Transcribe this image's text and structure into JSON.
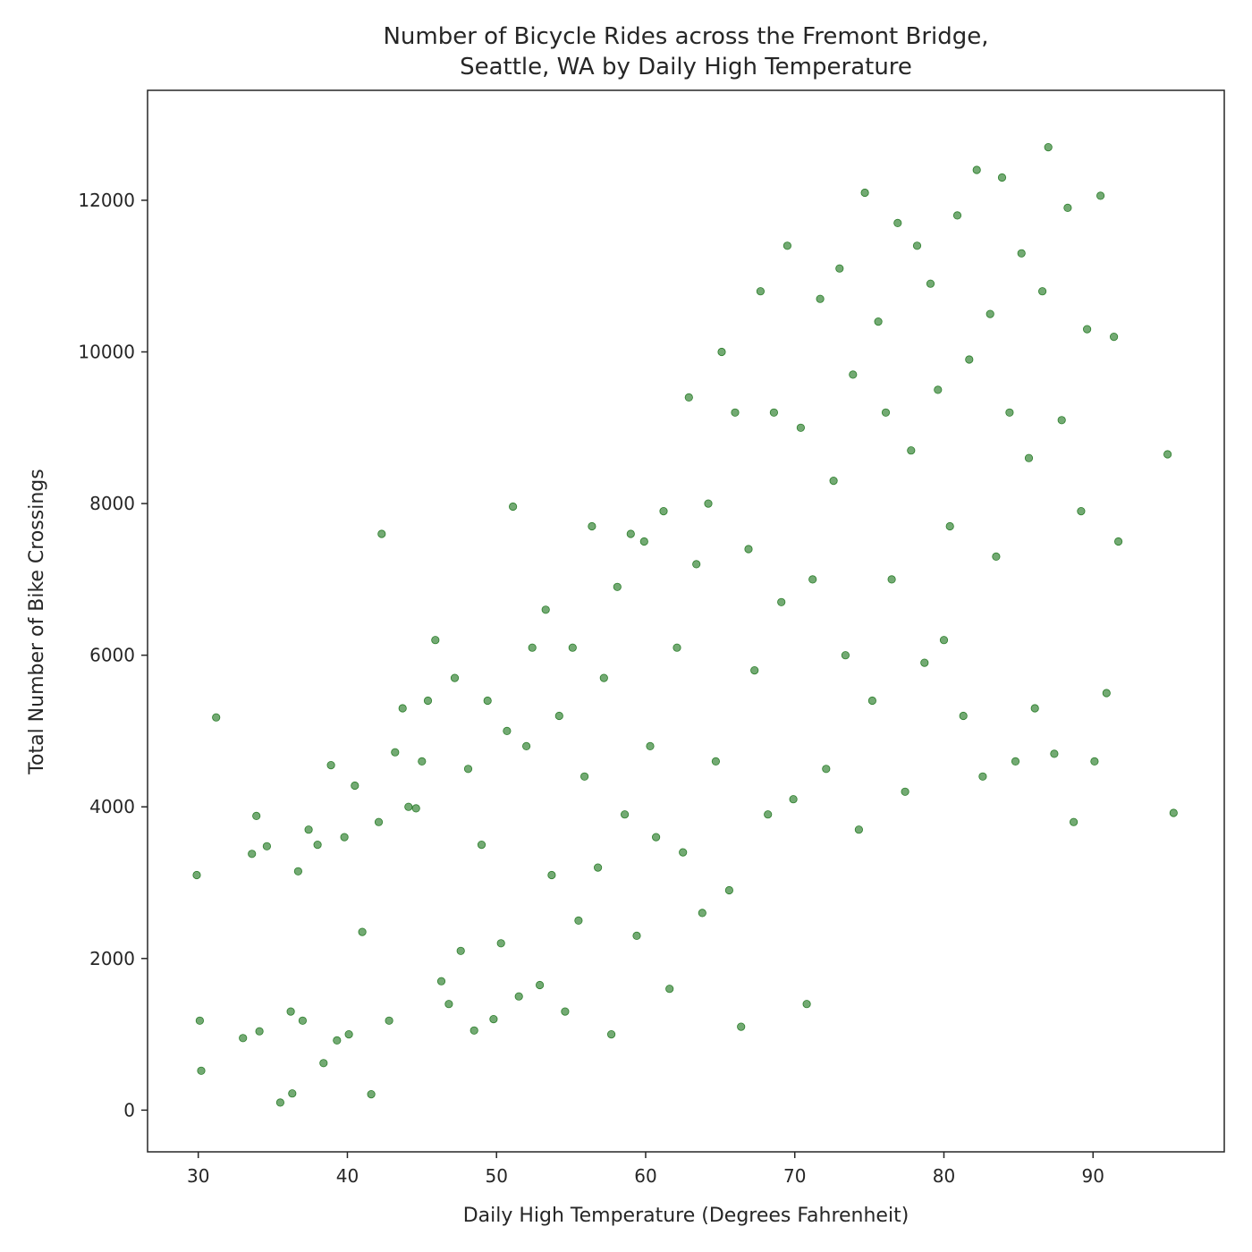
{
  "chart_data": {
    "type": "scatter",
    "title_line1": "Number of Bicycle Rides across the Fremont Bridge,",
    "title_line2": "Seattle, WA by Daily High Temperature",
    "xlabel": "Daily High Temperature (Degrees Fahrenheit)",
    "ylabel": "Total Number of Bike Crossings",
    "xlim": [
      26.6,
      98.8
    ],
    "ylim": [
      -550,
      13450
    ],
    "x_ticks": [
      30,
      40,
      50,
      60,
      70,
      80,
      90
    ],
    "y_ticks": [
      0,
      2000,
      4000,
      6000,
      8000,
      10000,
      12000
    ],
    "grid": false,
    "legend": "none",
    "marker_color": "#006400",
    "marker_alpha": 0.55,
    "series": [
      {
        "x": [
          29.9,
          30.1,
          30.2,
          31.2,
          33.0,
          33.6,
          33.9,
          34.1,
          34.6,
          35.5,
          36.2,
          36.3,
          36.7,
          37.0,
          37.4,
          38.0,
          38.4,
          38.9,
          39.3,
          39.8,
          40.1,
          40.5,
          41.0,
          41.6,
          42.1,
          42.3,
          42.8,
          43.2,
          43.7,
          44.1,
          44.6,
          45.0,
          45.4,
          45.9,
          46.3,
          46.8,
          47.2,
          47.6,
          48.1,
          48.5,
          49.0,
          49.4,
          49.8,
          50.3,
          50.7,
          51.1,
          51.5,
          52.0,
          52.4,
          52.9,
          53.3,
          53.7,
          54.2,
          54.6,
          55.1,
          55.5,
          55.9,
          56.4,
          56.8,
          57.2,
          57.7,
          58.1,
          58.6,
          59.0,
          59.4,
          59.9,
          60.3,
          60.7,
          61.2,
          61.6,
          62.1,
          62.5,
          62.9,
          63.4,
          63.8,
          64.2,
          64.7,
          65.1,
          65.6,
          66.0,
          66.4,
          66.9,
          67.3,
          67.7,
          68.2,
          68.6,
          69.1,
          69.5,
          69.9,
          70.4,
          70.8,
          71.2,
          71.7,
          72.1,
          72.6,
          73.0,
          73.4,
          73.9,
          74.3,
          74.7,
          75.2,
          75.6,
          76.1,
          76.5,
          76.9,
          77.4,
          77.8,
          78.2,
          78.7,
          79.1,
          79.6,
          80.0,
          80.4,
          80.9,
          81.3,
          81.7,
          82.2,
          82.6,
          83.1,
          83.5,
          83.9,
          84.4,
          84.8,
          85.2,
          85.7,
          86.1,
          86.6,
          87.0,
          87.4,
          87.9,
          88.3,
          88.7,
          89.2,
          89.6,
          90.1,
          90.5,
          90.9,
          91.4,
          91.7,
          95.0,
          95.4
        ],
        "y": [
          3100,
          1180,
          520,
          5180,
          950,
          3380,
          3880,
          1040,
          3480,
          100,
          1300,
          220,
          3150,
          1180,
          3700,
          3500,
          620,
          4550,
          920,
          3600,
          1000,
          4280,
          2350,
          210,
          3800,
          7600,
          1180,
          4720,
          5300,
          4000,
          3980,
          4600,
          5400,
          6200,
          1700,
          1400,
          5700,
          2100,
          4500,
          1050,
          3500,
          5400,
          1200,
          2200,
          5000,
          7960,
          1500,
          4800,
          6100,
          1650,
          6600,
          3100,
          5200,
          1300,
          6100,
          2500,
          4400,
          7700,
          3200,
          5700,
          1000,
          6900,
          3900,
          7600,
          2300,
          7500,
          4800,
          3600,
          7900,
          1600,
          6100,
          3400,
          9400,
          7200,
          2600,
          8000,
          4600,
          10000,
          2900,
          9200,
          1100,
          7400,
          5800,
          10800,
          3900,
          9200,
          6700,
          11400,
          4100,
          9000,
          1400,
          7000,
          10700,
          4500,
          8300,
          11100,
          6000,
          9700,
          3700,
          12100,
          5400,
          10400,
          9200,
          7000,
          11700,
          4200,
          8700,
          11400,
          5900,
          10900,
          9500,
          6200,
          7700,
          11800,
          5200,
          9900,
          12400,
          4400,
          10500,
          7300,
          12300,
          9200,
          4600,
          11300,
          8600,
          5300,
          10800,
          12700,
          4700,
          9100,
          11900,
          3800,
          7900,
          10300,
          4600,
          12060,
          5500,
          10200,
          7500,
          8650,
          3920
        ]
      }
    ]
  }
}
